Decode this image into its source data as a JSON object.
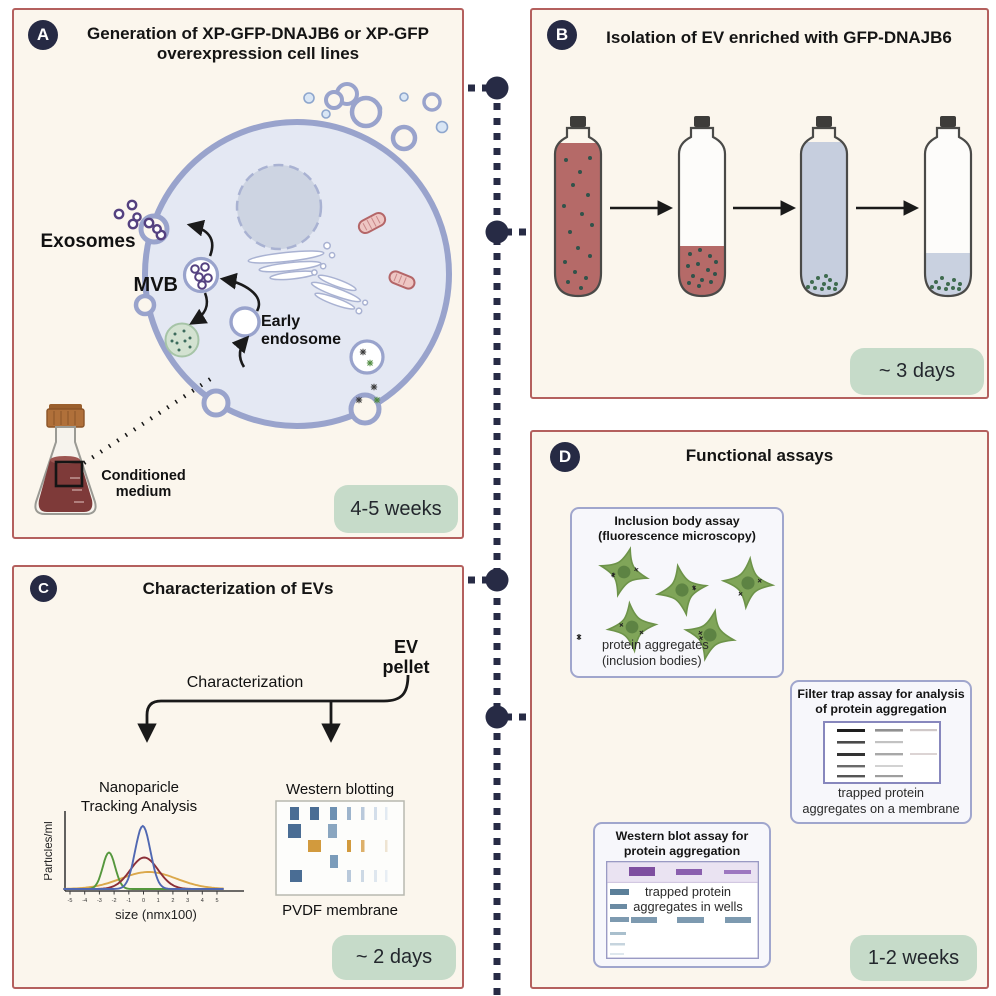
{
  "colors": {
    "panel_border": "#b4605e",
    "panel_bg": "#fbf6ed",
    "badge_bg": "#c6dbc9",
    "letter_badge_bg": "#262a44",
    "connector": "#272b45",
    "membrane": "#99a3cc",
    "cytoplasm": "#e4e8f3",
    "medium_red": "#b56a68",
    "ev_green": "#3f6b4f"
  },
  "panel_a": {
    "letter": "A",
    "title": "Generation of XP-GFP-DNAJB6 or XP-GFP overexpression cell lines",
    "exosomes_label": "Exosomes",
    "mvb_label": "MVB",
    "early_endosome_label": "Early\nendosome",
    "conditioned_medium_label": "Conditioned\nmedium",
    "duration": "4-5 weeks"
  },
  "panel_b": {
    "letter": "B",
    "title": "Isolation of EV enriched with GFP-DNAJB6",
    "duration": "~ 3 days"
  },
  "panel_c": {
    "letter": "C",
    "title": "Characterization of EVs",
    "ev_pellet_label": "EV\npellet",
    "characterization_label": "Characterization",
    "nta_label": "Nanoparicle\nTracking Analysis",
    "western_label": "Western blotting",
    "pvdf_label": "PVDF membrane",
    "duration": "~ 2 days"
  },
  "panel_d": {
    "letter": "D",
    "title": "Functional assays",
    "inclusion_title": "Inclusion body assay (fluorescence microscopy)",
    "inclusion_caption": "protein aggregates\n(inclusion bodies)",
    "filter_title": "Filter trap assay for analysis of protein aggregation",
    "filter_caption": "trapped protein\naggregates on a membrane",
    "wb_title": "Western blot assay for protein aggregation",
    "wb_caption": "trapped protein\naggregates in wells",
    "duration": "1-2 weeks"
  },
  "chart_data": {
    "type": "line",
    "title": "Nanoparicle Tracking Analysis",
    "xlabel": "size (nmx100)",
    "ylabel": "Particles/ml",
    "xlim": [
      -5,
      5
    ],
    "xticks": [
      -5,
      -4,
      -3,
      -2,
      -1,
      0,
      1,
      2,
      3,
      4,
      5
    ],
    "grid": false,
    "legend": "none",
    "series": [
      {
        "name": "orange-broad",
        "color": "#dba84b",
        "center": 0.35,
        "sigma": 1.9,
        "peak": 0.27
      },
      {
        "name": "green-narrow",
        "color": "#55973d",
        "center": -2.35,
        "sigma": 0.42,
        "peak": 0.58
      },
      {
        "name": "darkred-mid",
        "color": "#8c3038",
        "center": 0.05,
        "sigma": 0.95,
        "peak": 0.5
      },
      {
        "name": "blue-tall",
        "color": "#5068b2",
        "center": -0.05,
        "sigma": 0.52,
        "peak": 1.0
      }
    ]
  }
}
